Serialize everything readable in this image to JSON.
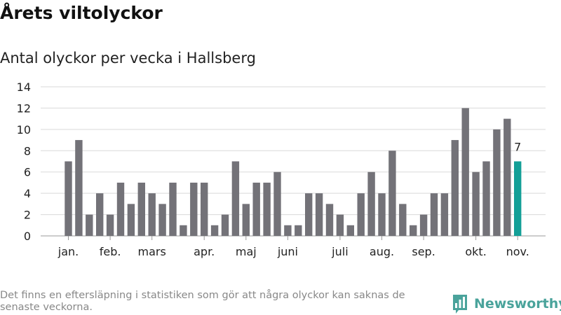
{
  "title": "Årets viltolyckor",
  "subtitle": "Antal olyckor per vecka i Hallsberg",
  "footnote": "Det finns en eftersläpning i statistiken som gör att några olyckor kan saknas de senaste veckorna.",
  "brand": {
    "name": "Newsworthy",
    "icon": "bar-chart-logo-icon",
    "color": "#4aa39b"
  },
  "chart_data": {
    "type": "bar",
    "xlabel": "",
    "ylabel": "",
    "ylim": [
      0,
      14
    ],
    "yticks": [
      0,
      2,
      4,
      6,
      8,
      10,
      12,
      14
    ],
    "grid": true,
    "values": [
      7,
      9,
      2,
      4,
      2,
      5,
      3,
      5,
      4,
      3,
      5,
      1,
      5,
      5,
      1,
      2,
      7,
      3,
      5,
      5,
      6,
      1,
      1,
      4,
      4,
      3,
      2,
      1,
      4,
      6,
      4,
      8,
      3,
      1,
      2,
      4,
      4,
      9,
      12,
      6,
      7,
      10,
      11,
      7
    ],
    "month_labels": [
      {
        "label": "jan.",
        "week": 1
      },
      {
        "label": "feb.",
        "week": 5
      },
      {
        "label": "mars",
        "week": 9
      },
      {
        "label": "apr.",
        "week": 14
      },
      {
        "label": "maj",
        "week": 18
      },
      {
        "label": "juni",
        "week": 22
      },
      {
        "label": "juli",
        "week": 27
      },
      {
        "label": "aug.",
        "week": 31
      },
      {
        "label": "sep.",
        "week": 35
      },
      {
        "label": "okt.",
        "week": 40
      },
      {
        "label": "nov.",
        "week": 44
      }
    ],
    "highlight": {
      "index": 43,
      "label": "7",
      "color": "#139f97"
    },
    "bar_color": "#737278"
  }
}
